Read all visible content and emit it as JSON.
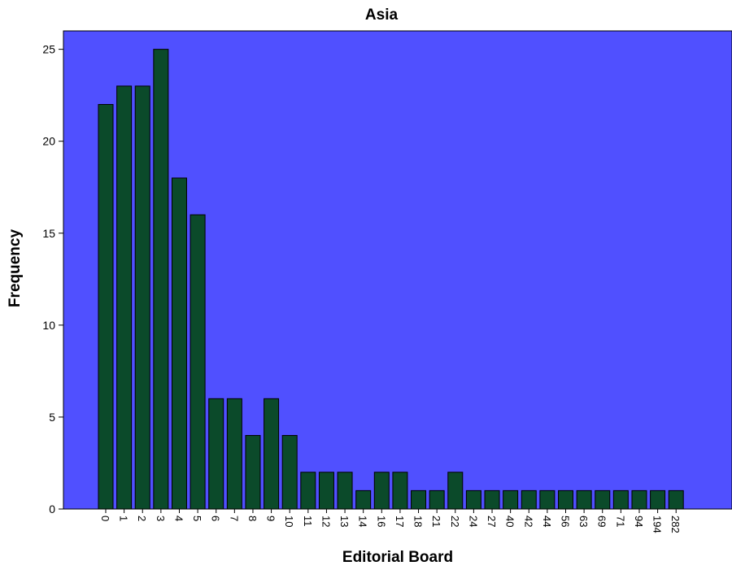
{
  "chart_data": {
    "type": "bar",
    "title": "Asia",
    "xlabel": "Editorial Board",
    "ylabel": "Frequency",
    "categories": [
      "0",
      "1",
      "2",
      "3",
      "4",
      "5",
      "6",
      "7",
      "8",
      "9",
      "10",
      "11",
      "12",
      "13",
      "14",
      "16",
      "17",
      "18",
      "21",
      "22",
      "24",
      "27",
      "40",
      "42",
      "44",
      "56",
      "63",
      "69",
      "71",
      "94",
      "194",
      "282"
    ],
    "values": [
      22,
      23,
      23,
      25,
      18,
      16,
      6,
      6,
      4,
      6,
      4,
      2,
      2,
      2,
      1,
      2,
      2,
      1,
      1,
      2,
      1,
      1,
      1,
      1,
      1,
      1,
      1,
      1,
      1,
      1,
      1,
      1
    ],
    "ylim": [
      0,
      26
    ],
    "yticks": [
      0,
      5,
      10,
      15,
      20,
      25
    ],
    "grid": false,
    "legend": "none",
    "colors": {
      "plot_background": "#5050ff",
      "bar_fill": "#0b4a2a",
      "bar_stroke": "#000000",
      "axis": "#000000",
      "text": "#000000"
    }
  }
}
